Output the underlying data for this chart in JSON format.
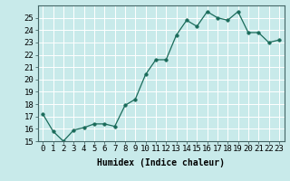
{
  "x": [
    0,
    1,
    2,
    3,
    4,
    5,
    6,
    7,
    8,
    9,
    10,
    11,
    12,
    13,
    14,
    15,
    16,
    17,
    18,
    19,
    20,
    21,
    22,
    23
  ],
  "y": [
    17.2,
    15.8,
    15.0,
    15.9,
    16.1,
    16.4,
    16.4,
    16.2,
    17.9,
    18.4,
    20.4,
    21.6,
    21.6,
    23.6,
    24.8,
    24.3,
    25.5,
    25.0,
    24.8,
    25.5,
    23.8,
    23.8,
    23.0,
    23.2
  ],
  "line_color": "#1a6b5a",
  "marker": "o",
  "marker_size": 2.5,
  "bg_color": "#c8eaea",
  "grid_color": "#ffffff",
  "xlabel": "Humidex (Indice chaleur)",
  "ylim": [
    15,
    26
  ],
  "xlim": [
    -0.5,
    23.5
  ],
  "yticks": [
    15,
    16,
    17,
    18,
    19,
    20,
    21,
    22,
    23,
    24,
    25
  ],
  "xticks": [
    0,
    1,
    2,
    3,
    4,
    5,
    6,
    7,
    8,
    9,
    10,
    11,
    12,
    13,
    14,
    15,
    16,
    17,
    18,
    19,
    20,
    21,
    22,
    23
  ],
  "xlabel_fontsize": 7,
  "tick_fontsize": 6.5
}
